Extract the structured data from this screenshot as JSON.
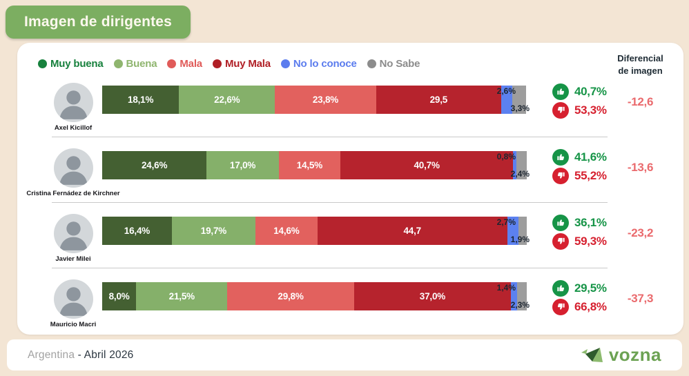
{
  "title": "Imagen de dirigentes",
  "legend": {
    "items": [
      {
        "label": "Muy buena",
        "color": "#17813d"
      },
      {
        "label": "Buena",
        "color": "#8fb56f"
      },
      {
        "label": "Mala",
        "color": "#e05b59"
      },
      {
        "label": "Muy Mala",
        "color": "#b01f26"
      },
      {
        "label": "No lo conoce",
        "color": "#5b7cee"
      },
      {
        "label": "No Sabe",
        "color": "#8c8c8c"
      }
    ]
  },
  "diferencial_header": {
    "line1": "Diferencial",
    "line2": "de imagen"
  },
  "colors": {
    "background": "#f3e5d4",
    "card": "#ffffff",
    "title_bg": "#7cae61",
    "title_text": "#fdf8ee",
    "seg_muy_buena": "#446032",
    "seg_buena": "#85b06a",
    "seg_mala": "#e2615e",
    "seg_muy_mala": "#b6232d",
    "seg_no_conoce": "#5c81f0",
    "seg_no_sabe": "#9d9d9d",
    "up_green": "#169447",
    "down_red": "#d6202f",
    "dif_value": "#ea6a6d",
    "brand_green": "#6ca253"
  },
  "rows": [
    {
      "name": "Axel Kicillof",
      "values": [
        18.1,
        22.6,
        23.8,
        29.5,
        2.6,
        3.3
      ],
      "seg_labels": [
        "18,1%",
        "22,6%",
        "23,8%",
        "29,5"
      ],
      "label_no_conoce": "2,6%",
      "label_no_sabe": "3,3%",
      "up": "40,7%",
      "down": "53,3%",
      "dif": "-12,6"
    },
    {
      "name": "Cristina Fernádez de Kirchner",
      "values": [
        24.6,
        17.0,
        14.5,
        40.7,
        0.8,
        2.4
      ],
      "seg_labels": [
        "24,6%",
        "17,0%",
        "14,5%",
        "40,7%"
      ],
      "label_no_conoce": "0,8%",
      "label_no_sabe": "2,4%",
      "up": "41,6%",
      "down": "55,2%",
      "dif": "-13,6"
    },
    {
      "name": "Javier Milei",
      "values": [
        16.4,
        19.7,
        14.6,
        44.7,
        2.7,
        1.9
      ],
      "seg_labels": [
        "16,4%",
        "19,7%",
        "14,6%",
        "44,7"
      ],
      "label_no_conoce": "2,7%",
      "label_no_sabe": "1,9%",
      "up": "36,1%",
      "down": "59,3%",
      "dif": "-23,2"
    },
    {
      "name": "Mauricio Macri",
      "values": [
        8.0,
        21.5,
        29.8,
        37.0,
        1.4,
        2.3
      ],
      "seg_labels": [
        "8,0%",
        "21,5%",
        "29,8%",
        "37,0%"
      ],
      "label_no_conoce": "1,4%",
      "label_no_sabe": "2,3%",
      "up": "29,5%",
      "down": "66,8%",
      "dif": "-37,3"
    }
  ],
  "footer": {
    "country": "Argentina",
    "date": "- Abril 2026",
    "brand": "vozna"
  },
  "chart_data": {
    "type": "bar",
    "orientation": "horizontal_stacked",
    "title": "Imagen de dirigentes",
    "categories": [
      "Axel Kicillof",
      "Cristina Fernádez de Kirchner",
      "Javier Milei",
      "Mauricio Macri"
    ],
    "series": [
      {
        "name": "Muy buena",
        "values": [
          18.1,
          24.6,
          16.4,
          8.0
        ]
      },
      {
        "name": "Buena",
        "values": [
          22.6,
          17.0,
          19.7,
          21.5
        ]
      },
      {
        "name": "Mala",
        "values": [
          23.8,
          14.5,
          14.6,
          29.8
        ]
      },
      {
        "name": "Muy Mala",
        "values": [
          29.5,
          40.7,
          44.7,
          37.0
        ]
      },
      {
        "name": "No lo conoce",
        "values": [
          2.6,
          0.8,
          2.7,
          1.4
        ]
      },
      {
        "name": "No Sabe",
        "values": [
          3.3,
          2.4,
          1.9,
          2.3
        ]
      }
    ],
    "positive_totals": [
      40.7,
      41.6,
      36.1,
      29.5
    ],
    "negative_totals": [
      53.3,
      55.2,
      59.3,
      66.8
    ],
    "diferencial_de_imagen": [
      -12.6,
      -13.6,
      -23.2,
      -37.3
    ],
    "xlim": [
      0,
      100
    ],
    "legend_position": "top",
    "footnote": "Argentina - Abril 2026"
  }
}
